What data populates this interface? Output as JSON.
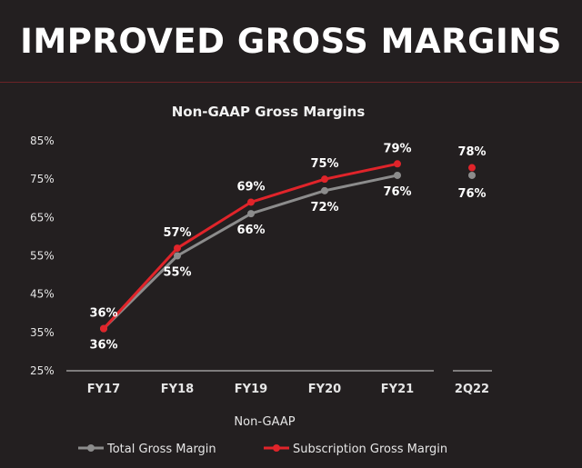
{
  "page_title": "IMPROVED GROSS MARGINS",
  "colors": {
    "background": "#231f20",
    "total_series": "#8c8c8c",
    "subscription_series": "#e0242a",
    "rule": "#6b2327"
  },
  "chart_data": {
    "type": "line",
    "title": "Non-GAAP Gross Margins",
    "xlabel": "Non-GAAP",
    "ylabel": "",
    "ylim": [
      25,
      85
    ],
    "y_ticks": [
      "85%",
      "75%",
      "65%",
      "55%",
      "45%",
      "35%",
      "25%"
    ],
    "y_tick_values": [
      85,
      75,
      65,
      55,
      45,
      35,
      25
    ],
    "categories": [
      "FY17",
      "FY18",
      "FY19",
      "FY20",
      "FY21"
    ],
    "standalone_category": "2Q22",
    "grid": false,
    "legend_position": "bottom",
    "series": [
      {
        "name": "Total Gross Margin",
        "values": [
          36,
          55,
          66,
          72,
          76
        ],
        "labels": [
          "36%",
          "55%",
          "66%",
          "72%",
          "76%"
        ],
        "standalone_value": 76,
        "standalone_label": "76%"
      },
      {
        "name": "Subscription Gross Margin",
        "values": [
          36,
          57,
          69,
          75,
          79
        ],
        "labels": [
          "36%",
          "57%",
          "69%",
          "75%",
          "79%"
        ],
        "standalone_value": 78,
        "standalone_label": "78%"
      }
    ]
  }
}
